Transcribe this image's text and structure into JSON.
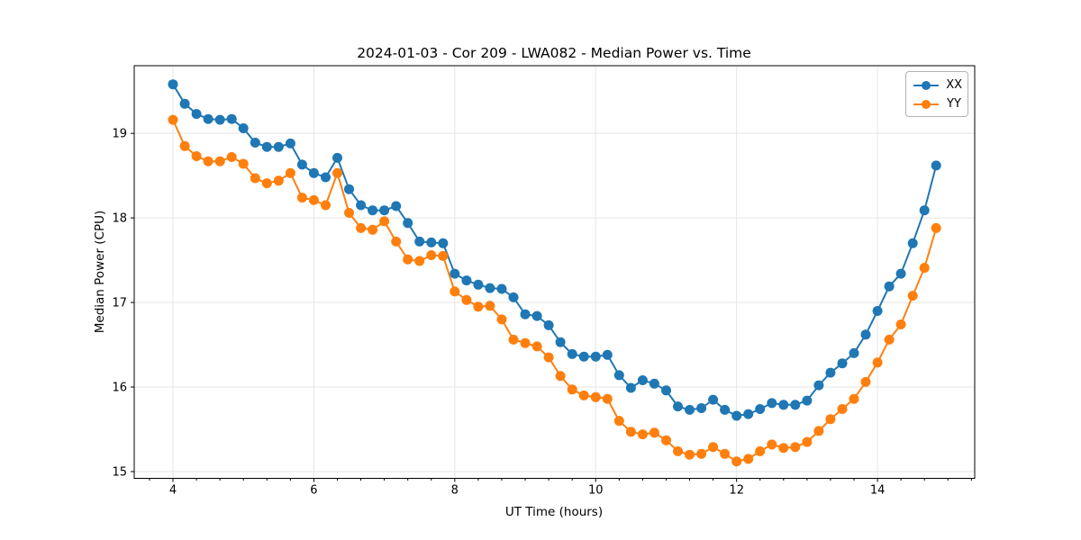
{
  "chart_data": {
    "type": "line",
    "title": "2024-01-03 - Cor 209 - LWA082 - Median Power vs. Time",
    "xlabel": "UT Time (hours)",
    "ylabel": "Median Power (CPU)",
    "x": [
      4.0,
      4.167,
      4.333,
      4.5,
      4.667,
      4.833,
      5.0,
      5.167,
      5.333,
      5.5,
      5.667,
      5.833,
      6.0,
      6.167,
      6.333,
      6.5,
      6.667,
      6.833,
      7.0,
      7.167,
      7.333,
      7.5,
      7.667,
      7.833,
      8.0,
      8.167,
      8.333,
      8.5,
      8.667,
      8.833,
      9.0,
      9.167,
      9.333,
      9.5,
      9.667,
      9.833,
      10.0,
      10.167,
      10.333,
      10.5,
      10.667,
      10.833,
      11.0,
      11.167,
      11.333,
      11.5,
      11.667,
      11.833,
      12.0,
      12.167,
      12.333,
      12.5,
      12.667,
      12.833,
      13.0,
      13.167,
      13.333,
      13.5,
      13.667,
      13.833,
      14.0,
      14.167,
      14.333,
      14.5,
      14.667,
      14.833
    ],
    "series": [
      {
        "name": "XX",
        "color": "#1f77b4",
        "values": [
          19.58,
          19.35,
          19.23,
          19.17,
          19.16,
          19.17,
          19.06,
          18.89,
          18.84,
          18.84,
          18.88,
          18.63,
          18.53,
          18.48,
          18.71,
          18.34,
          18.15,
          18.09,
          18.09,
          18.14,
          17.94,
          17.72,
          17.71,
          17.7,
          17.34,
          17.26,
          17.21,
          17.17,
          17.16,
          17.06,
          16.86,
          16.84,
          16.73,
          16.53,
          16.39,
          16.36,
          16.36,
          16.38,
          16.14,
          15.99,
          16.08,
          16.04,
          15.96,
          15.77,
          15.73,
          15.75,
          15.85,
          15.73,
          15.66,
          15.68,
          15.74,
          15.81,
          15.79,
          15.79,
          15.84,
          16.02,
          16.17,
          16.28,
          16.4,
          16.62,
          16.9,
          17.19,
          17.34,
          17.7,
          18.09,
          18.62
        ]
      },
      {
        "name": "YY",
        "color": "#ff7f0e",
        "values": [
          19.16,
          18.85,
          18.73,
          18.67,
          18.67,
          18.72,
          18.64,
          18.47,
          18.41,
          18.44,
          18.53,
          18.24,
          18.21,
          18.15,
          18.53,
          18.06,
          17.88,
          17.86,
          17.96,
          17.72,
          17.51,
          17.49,
          17.56,
          17.55,
          17.13,
          17.03,
          16.95,
          16.96,
          16.8,
          16.56,
          16.52,
          16.48,
          16.35,
          16.13,
          15.97,
          15.9,
          15.88,
          15.86,
          15.6,
          15.47,
          15.44,
          15.46,
          15.37,
          15.24,
          15.2,
          15.21,
          15.29,
          15.21,
          15.12,
          15.15,
          15.24,
          15.32,
          15.28,
          15.29,
          15.35,
          15.48,
          15.62,
          15.74,
          15.86,
          16.06,
          16.29,
          16.56,
          16.74,
          17.08,
          17.41,
          17.88
        ]
      }
    ],
    "xticks": [
      4,
      6,
      8,
      10,
      12,
      14
    ],
    "yticks": [
      15,
      16,
      17,
      18,
      19
    ],
    "xlim": [
      3.45,
      15.38
    ],
    "ylim": [
      14.92,
      19.8
    ],
    "grid": true,
    "grid_color": "#e5e5e5",
    "legend_position": "upper right",
    "marker": "circle"
  }
}
